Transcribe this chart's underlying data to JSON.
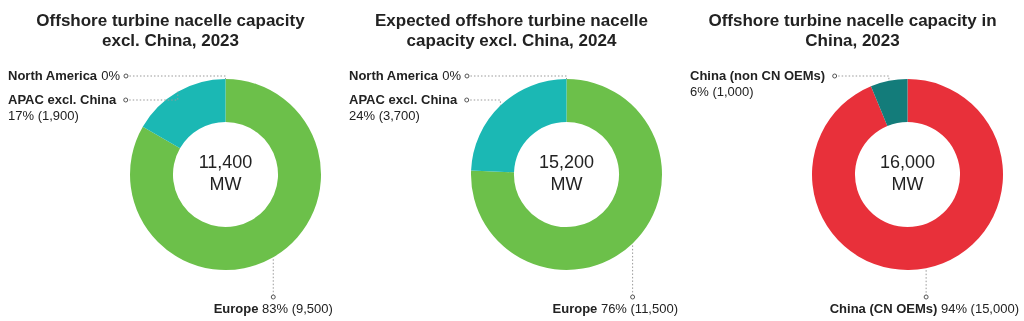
{
  "chart_data": [
    {
      "type": "donut",
      "title": "Offshore turbine nacelle capacity excl. China, 2023",
      "categories": [
        "Europe",
        "APAC excl. China",
        "North America"
      ],
      "values": [
        9500,
        1900,
        0
      ],
      "colors": [
        "#6cc04a",
        "#1bb8b4",
        "#1bb8b4"
      ],
      "value_labels": [
        "83% (9,500)",
        "17% (1,900)",
        "0%"
      ],
      "annotations": [
        "11,400 MW"
      ]
    },
    {
      "type": "donut",
      "title": "Expected offshore turbine nacelle capacity excl. China, 2024",
      "categories": [
        "Europe",
        "APAC excl. China",
        "North America"
      ],
      "values": [
        11500,
        3700,
        0
      ],
      "colors": [
        "#6cc04a",
        "#1bb8b4",
        "#1bb8b4"
      ],
      "value_labels": [
        "76% (11,500)",
        "24% (3,700)",
        "0%"
      ],
      "annotations": [
        "15,200 MW"
      ]
    },
    {
      "type": "donut",
      "title": "Offshore turbine nacelle capacity in China, 2023",
      "categories": [
        "China (CN OEMs)",
        "China (non CN OEMs)"
      ],
      "values": [
        15000,
        1000
      ],
      "colors": [
        "#e8303a",
        "#137c7a"
      ],
      "value_labels": [
        "94% (15,000)",
        "6% (1,000)"
      ],
      "annotations": [
        "16,000 MW"
      ]
    }
  ]
}
